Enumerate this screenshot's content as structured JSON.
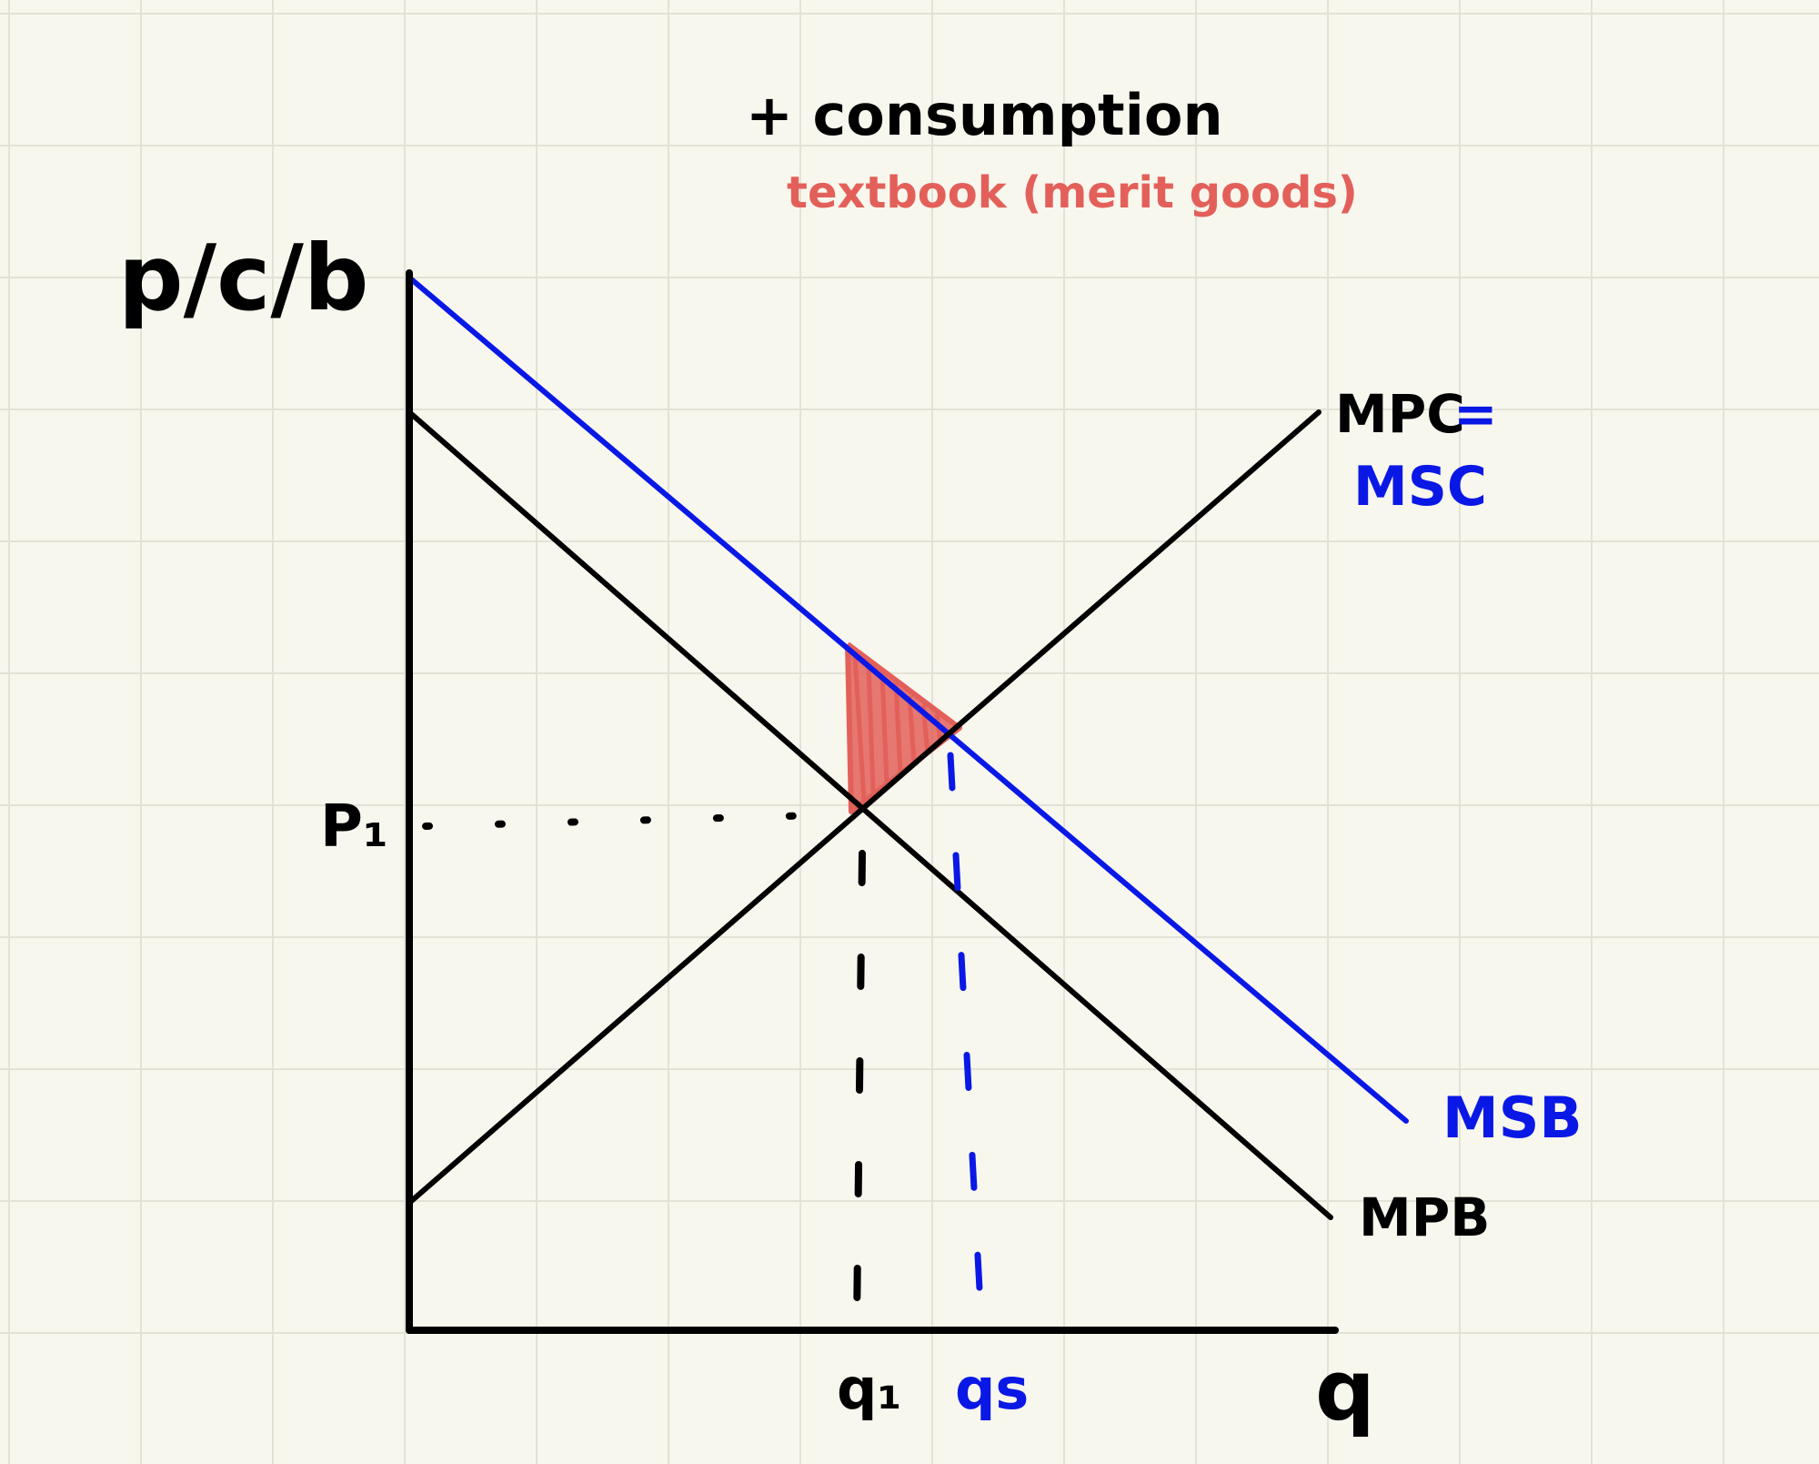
{
  "title": "+ consumption",
  "subtitle": "textbook (merit goods)",
  "axes": {
    "y_label": "p/c/b",
    "x_label": "q"
  },
  "curves": {
    "mpc_label": "MPC",
    "equals_sign": "=",
    "msc_label": "MSC",
    "msb_label": "MSB",
    "mpb_label": "MPB"
  },
  "markers": {
    "price_label": "P₁",
    "q1_label": "q₁",
    "qs_label": "qs"
  },
  "colors": {
    "background": "#f8f7ee",
    "grid": "#e3e2d6",
    "black": "#000000",
    "blue": "#0a18e6",
    "red": "#e3605a"
  }
}
